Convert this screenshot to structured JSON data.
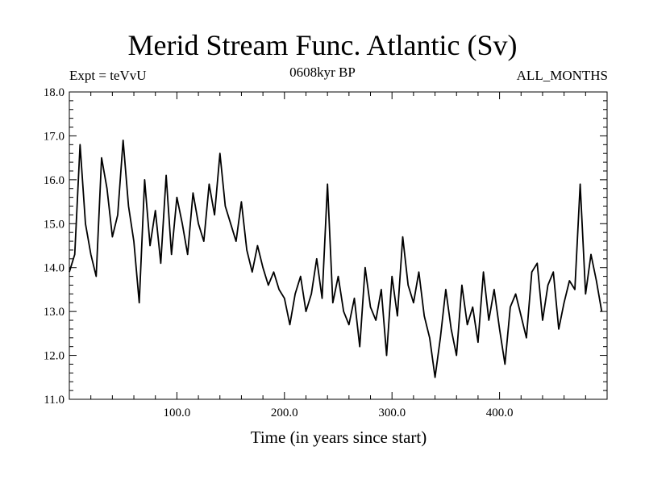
{
  "chart_data": {
    "type": "line",
    "title": "Merid Stream Func. Atlantic (Sv)",
    "subtitle_left": "Expt = teVvU",
    "subtitle_center": "0608kyr BP",
    "subtitle_right": "ALL_MONTHS",
    "xlabel": "Time (in years since start)",
    "ylabel": "",
    "xlim": [
      0,
      500
    ],
    "ylim": [
      11.0,
      18.0
    ],
    "x_ticks": [
      100,
      200,
      300,
      400
    ],
    "x_tick_labels": [
      "100.0",
      "200.0",
      "300.0",
      "400.0"
    ],
    "y_ticks": [
      11,
      12,
      13,
      14,
      15,
      16,
      17,
      18
    ],
    "y_tick_labels": [
      "11.0",
      "12.0",
      "13.0",
      "14.0",
      "15.0",
      "16.0",
      "17.0",
      "18.0"
    ],
    "grid": false,
    "color": "#000000",
    "series": [
      {
        "x_start": 0,
        "x_step": 5,
        "values": [
          13.9,
          14.3,
          16.8,
          15.0,
          14.3,
          13.8,
          16.5,
          15.8,
          14.7,
          15.2,
          16.9,
          15.4,
          14.6,
          13.2,
          16.0,
          14.5,
          15.3,
          14.1,
          16.1,
          14.3,
          15.6,
          15.0,
          14.3,
          15.7,
          15.0,
          14.6,
          15.9,
          15.2,
          16.6,
          15.4,
          15.0,
          14.6,
          15.5,
          14.4,
          13.9,
          14.5,
          14.0,
          13.6,
          13.9,
          13.5,
          13.3,
          12.7,
          13.4,
          13.8,
          13.0,
          13.4,
          14.2,
          13.3,
          15.9,
          13.2,
          13.8,
          13.0,
          12.7,
          13.3,
          12.2,
          14.0,
          13.1,
          12.8,
          13.5,
          12.0,
          13.8,
          12.9,
          14.7,
          13.6,
          13.2,
          13.9,
          12.9,
          12.4,
          11.5,
          12.4,
          13.5,
          12.6,
          12.0,
          13.6,
          12.7,
          13.1,
          12.3,
          13.9,
          12.8,
          13.5,
          12.6,
          11.8,
          13.1,
          13.4,
          12.9,
          12.4,
          13.9,
          14.1,
          12.8,
          13.6,
          13.9,
          12.6,
          13.2,
          13.7,
          13.5,
          15.9,
          13.4,
          14.3,
          13.7,
          13.0
        ]
      }
    ]
  }
}
